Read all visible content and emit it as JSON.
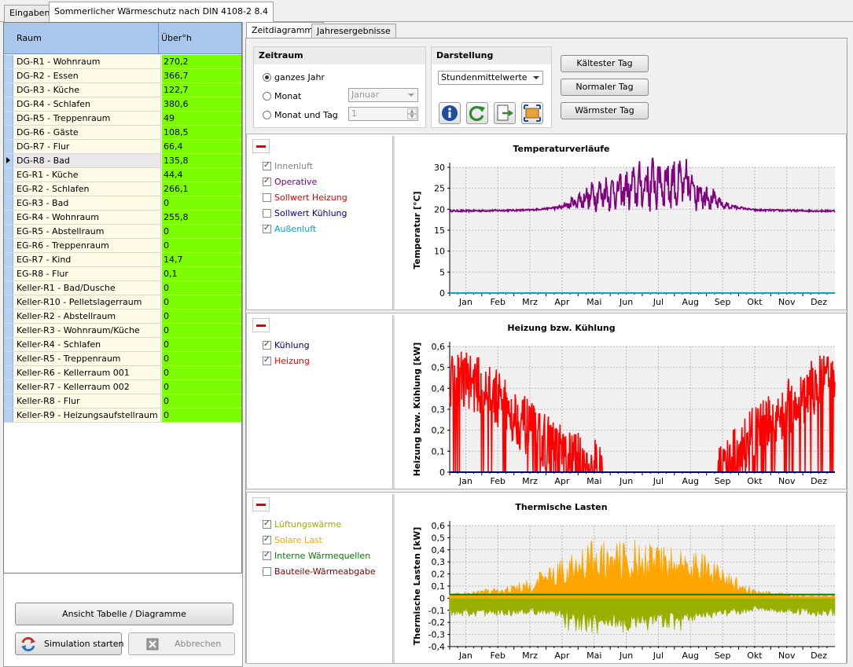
{
  "tabs": [
    {
      "label": "Eingaben"
    },
    {
      "label": "Sommerlicher Wärmeschutz nach DIN 4108-2 8.4"
    }
  ],
  "table": {
    "columns": [
      "Raum",
      "Über°h"
    ],
    "rows": [
      {
        "raum": "DG-R1 - Wohnraum",
        "val": "270,2"
      },
      {
        "raum": "DG-R2 - Essen",
        "val": "366,7"
      },
      {
        "raum": "DG-R3 - Küche",
        "val": "122,7"
      },
      {
        "raum": "DG-R4 - Schlafen",
        "val": "380,6"
      },
      {
        "raum": "DG-R5 - Treppenraum",
        "val": "49"
      },
      {
        "raum": "DG-R6 - Gäste",
        "val": "108,5"
      },
      {
        "raum": "DG-R7 - Flur",
        "val": "66,4"
      },
      {
        "raum": "DG-R8 - Bad",
        "val": "135,8"
      },
      {
        "raum": "EG-R1 - Küche",
        "val": "44,4"
      },
      {
        "raum": "EG-R2 - Schlafen",
        "val": "266,1"
      },
      {
        "raum": "EG-R3 - Bad",
        "val": "0"
      },
      {
        "raum": "EG-R4 - Wohnraum",
        "val": "255,8"
      },
      {
        "raum": "EG-R5 - Abstellraum",
        "val": "0"
      },
      {
        "raum": "EG-R6 - Treppenraum",
        "val": "0"
      },
      {
        "raum": "EG-R7 - Kind",
        "val": "14,7"
      },
      {
        "raum": "EG-R8 - Flur",
        "val": "0,1"
      },
      {
        "raum": "Keller-R1 - Bad/Dusche",
        "val": "0"
      },
      {
        "raum": "Keller-R10 - Pelletslagerraum",
        "val": "0"
      },
      {
        "raum": "Keller-R2 - Abstellraum",
        "val": "0"
      },
      {
        "raum": "Keller-R3 - Wohnraum/Küche",
        "val": "0"
      },
      {
        "raum": "Keller-R4 - Schlafen",
        "val": "0"
      },
      {
        "raum": "Keller-R5 - Treppenraum",
        "val": "0"
      },
      {
        "raum": "Keller-R6 - Kellerraum 001",
        "val": "0"
      },
      {
        "raum": "Keller-R7 - Kellerraum 002",
        "val": "0"
      },
      {
        "raum": "Keller-R8 - Flur",
        "val": "0"
      },
      {
        "raum": "Keller-R9 - Heizungsaufstellraum",
        "val": "0"
      }
    ],
    "selected_row": 7
  },
  "left_buttons": {
    "view_toggle": "Ansicht Tabelle / Diagramme",
    "start": "Simulation starten",
    "cancel": "Abbrechen"
  },
  "subtabs": [
    {
      "label": "Zeitdiagramme"
    },
    {
      "label": "Jahresergebnisse"
    }
  ],
  "zeitraum": {
    "title": "Zeitraum",
    "opt_year": "ganzes Jahr",
    "opt_month": "Monat",
    "opt_month_day": "Monat und Tag",
    "month_value": "Januar",
    "day_value": "1"
  },
  "darstellung": {
    "title": "Darstellung",
    "value": "Stundenmittelwerte"
  },
  "day_buttons": {
    "coldest": "Kältester Tag",
    "normal": "Normaler Tag",
    "warmest": "Wärmster Tag"
  },
  "colors": {
    "innenluft": "#808080",
    "operative": "#800080",
    "sollwert_heizung": "#e00000",
    "sollwert_kuehlung": "#000080",
    "aussenluft": "#00a8c8",
    "kuehlung": "#000080",
    "heizung": "#ff0000",
    "lueftung": "#9ab000",
    "solar": "#ffa500",
    "intern": "#008000",
    "bauteil": "#800000"
  },
  "months": [
    "Jan",
    "Feb",
    "Mrz",
    "Apr",
    "Mai",
    "Jun",
    "Jul",
    "Aug",
    "Sep",
    "Okt",
    "Nov",
    "Dez"
  ],
  "charts": {
    "temp": {
      "title": "Temperaturverläufe",
      "ylabel": "Temperatur [°C]",
      "ticks": [
        "30",
        "25",
        "20",
        "15",
        "10",
        "5",
        "0"
      ],
      "legend": [
        {
          "label": "Innenluft",
          "checked": true
        },
        {
          "label": "Operative",
          "checked": true
        },
        {
          "label": "Sollwert Heizung",
          "checked": false
        },
        {
          "label": "Sollwert Kühlung",
          "checked": false
        },
        {
          "label": "Außenluft",
          "checked": true
        }
      ]
    },
    "heat": {
      "title": "Heizung bzw. Kühlung",
      "ylabel": "Heizung bzw. Kühlung [kW]",
      "ticks": [
        "0,6",
        "0,5",
        "0,4",
        "0,3",
        "0,2",
        "0,1",
        "0"
      ],
      "legend": [
        {
          "label": "Kühlung",
          "checked": true
        },
        {
          "label": "Heizung",
          "checked": true
        }
      ]
    },
    "loads": {
      "title": "Thermische Lasten",
      "ylabel": "Thermische Lasten [kW]",
      "ticks": [
        "0,6",
        "0,5",
        "0,4",
        "0,3",
        "0,2",
        "0,1",
        "0",
        "-0,1",
        "-0,2",
        "-0,3",
        "-0,4"
      ],
      "legend": [
        {
          "label": "Lüftungswärme",
          "checked": true
        },
        {
          "label": "Solare Last",
          "checked": true
        },
        {
          "label": "Interne Wärmequellen",
          "checked": true
        },
        {
          "label": "Bauteile-Wärmeabgabe",
          "checked": false
        }
      ]
    }
  },
  "chart_data": [
    {
      "type": "line",
      "title": "Temperaturverläufe",
      "ylabel": "Temperatur [°C]",
      "ylim": [
        0,
        30
      ],
      "categories": [
        "Jan",
        "Feb",
        "Mrz",
        "Apr",
        "Mai",
        "Jun",
        "Jul",
        "Aug",
        "Sep",
        "Okt",
        "Nov",
        "Dez"
      ],
      "series": [
        {
          "name": "Operative",
          "values": [
            19.6,
            19.7,
            19.8,
            20.5,
            23.5,
            24.5,
            26.5,
            25.5,
            21.0,
            19.8,
            19.7,
            19.6
          ]
        },
        {
          "name": "Außenluft",
          "values": [
            0,
            0,
            0,
            0,
            0,
            0,
            0,
            0,
            0,
            0,
            0,
            0
          ]
        }
      ],
      "grid": true
    },
    {
      "type": "line",
      "title": "Heizung bzw. Kühlung",
      "ylabel": "Heizung bzw. Kühlung [kW]",
      "ylim": [
        0,
        0.6
      ],
      "categories": [
        "Jan",
        "Feb",
        "Mrz",
        "Apr",
        "Mai",
        "Jun",
        "Jul",
        "Aug",
        "Sep",
        "Okt",
        "Nov",
        "Dez"
      ],
      "series": [
        {
          "name": "Heizung",
          "values": [
            0.45,
            0.35,
            0.2,
            0.08,
            0.02,
            0,
            0,
            0,
            0.02,
            0.18,
            0.3,
            0.42
          ]
        },
        {
          "name": "Kühlung",
          "values": [
            0,
            0,
            0,
            0,
            0,
            0,
            0,
            0,
            0,
            0,
            0,
            0
          ]
        }
      ],
      "grid": true
    },
    {
      "type": "area",
      "title": "Thermische Lasten",
      "ylabel": "Thermische Lasten [kW]",
      "ylim": [
        -0.4,
        0.6
      ],
      "categories": [
        "Jan",
        "Feb",
        "Mrz",
        "Apr",
        "Mai",
        "Jun",
        "Jul",
        "Aug",
        "Sep",
        "Okt",
        "Nov",
        "Dez"
      ],
      "series": [
        {
          "name": "Solare Last",
          "values": [
            0.04,
            0.07,
            0.12,
            0.28,
            0.38,
            0.38,
            0.36,
            0.34,
            0.2,
            0.06,
            0.03,
            0.02
          ]
        },
        {
          "name": "Interne Wärmequellen",
          "values": [
            0.03,
            0.03,
            0.03,
            0.03,
            0.03,
            0.03,
            0.03,
            0.03,
            0.03,
            0.03,
            0.03,
            0.03
          ]
        },
        {
          "name": "Lüftungswärme",
          "values": [
            -0.12,
            -0.12,
            -0.11,
            -0.13,
            -0.17,
            -0.2,
            -0.15,
            -0.15,
            -0.12,
            -0.09,
            -0.1,
            -0.12
          ]
        }
      ],
      "grid": true
    }
  ]
}
